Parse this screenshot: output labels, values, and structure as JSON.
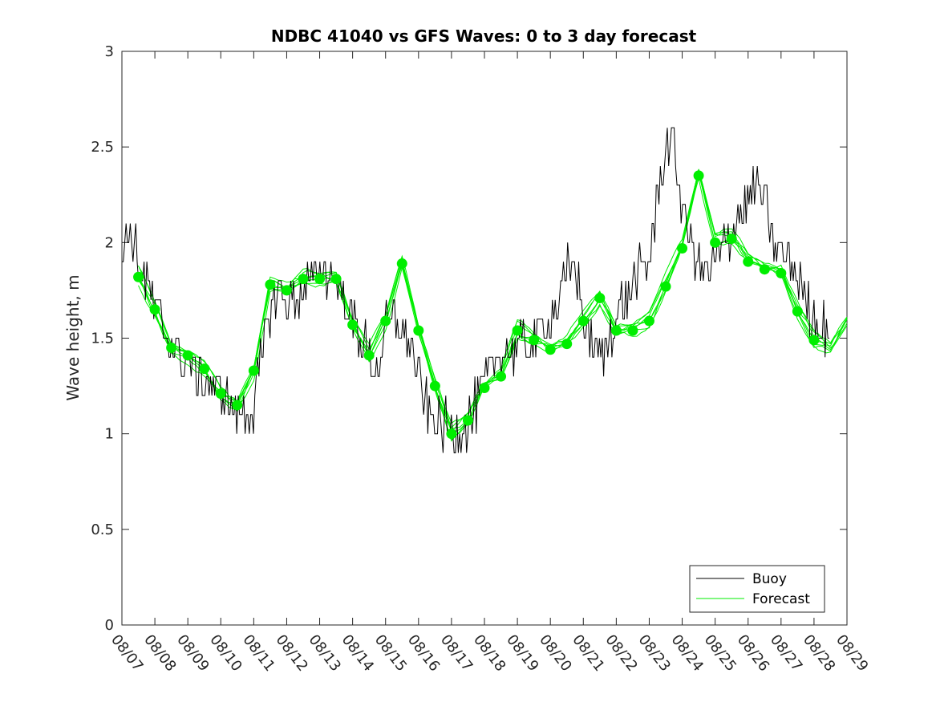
{
  "chart_data": {
    "type": "line",
    "title": "NDBC 41040 vs GFS Waves: 0 to 3 day forecast",
    "xlabel": "",
    "ylabel": "Wave height, m",
    "ylim": [
      0,
      3
    ],
    "xlim": [
      0,
      22
    ],
    "yticks": [
      0,
      0.5,
      1,
      1.5,
      2,
      2.5,
      3
    ],
    "ytick_labels": [
      "0",
      "0.5",
      "1",
      "1.5",
      "2",
      "2.5",
      "3"
    ],
    "xtick_labels": [
      "08/07",
      "08/08",
      "08/09",
      "08/10",
      "08/11",
      "08/12",
      "08/13",
      "08/14",
      "08/15",
      "08/16",
      "08/17",
      "08/18",
      "08/19",
      "08/20",
      "08/21",
      "08/22",
      "08/23",
      "08/24",
      "08/25",
      "08/26",
      "08/27",
      "08/28",
      "08/29"
    ],
    "x_unit": "days since 08/07",
    "legend": {
      "location": "bottom-right",
      "entries": [
        "Buoy",
        "Forecast"
      ]
    },
    "colors": {
      "buoy": "#000000",
      "forecast": "#00ee00",
      "markers": "#00ee00"
    },
    "series": [
      {
        "name": "Buoy",
        "x": [
          0,
          0.15,
          0.25,
          0.4,
          0.5,
          0.6,
          0.75,
          1.0,
          1.25,
          1.5,
          1.75,
          2.0,
          2.25,
          2.5,
          2.75,
          3.0,
          3.25,
          3.5,
          3.7,
          4.0,
          4.25,
          4.5,
          4.75,
          5.0,
          5.25,
          5.5,
          5.75,
          6.0,
          6.25,
          6.5,
          6.75,
          7.0,
          7.25,
          7.5,
          7.75,
          8.0,
          8.25,
          8.5,
          8.75,
          9.0,
          9.25,
          9.5,
          9.75,
          10.0,
          10.25,
          10.5,
          10.75,
          11.0,
          11.25,
          11.5,
          11.75,
          12.0,
          12.25,
          12.5,
          12.75,
          13.0,
          13.25,
          13.5,
          13.75,
          14.0,
          14.25,
          14.5,
          14.75,
          15.0,
          15.25,
          15.5,
          15.75,
          16.0,
          16.25,
          16.5,
          16.75,
          17.0,
          17.25,
          17.5,
          17.75,
          18.0,
          18.25,
          18.5,
          18.75,
          19.0,
          19.25,
          19.5,
          19.75,
          20.0,
          20.25,
          20.5,
          20.75,
          21.0,
          21.25,
          21.5
        ],
        "values": [
          1.85,
          2.1,
          2.0,
          1.95,
          1.9,
          1.85,
          1.8,
          1.65,
          1.55,
          1.45,
          1.4,
          1.35,
          1.3,
          1.28,
          1.25,
          1.2,
          1.15,
          1.12,
          1.1,
          1.15,
          1.4,
          1.65,
          1.75,
          1.7,
          1.72,
          1.75,
          1.8,
          1.85,
          1.82,
          1.8,
          1.7,
          1.6,
          1.5,
          1.4,
          1.3,
          1.55,
          1.6,
          1.55,
          1.45,
          1.3,
          1.15,
          1.08,
          1.05,
          1.0,
          1.02,
          1.05,
          1.15,
          1.25,
          1.35,
          1.42,
          1.45,
          1.45,
          1.45,
          1.48,
          1.55,
          1.6,
          1.7,
          1.85,
          1.9,
          1.6,
          1.5,
          1.4,
          1.5,
          1.6,
          1.7,
          1.8,
          1.85,
          1.9,
          2.2,
          2.5,
          2.5,
          2.2,
          2.0,
          1.9,
          1.85,
          1.9,
          1.95,
          2.05,
          2.15,
          2.2,
          2.3,
          2.2,
          2.0,
          1.95,
          1.9,
          1.85,
          1.7,
          1.6,
          1.55,
          1.55
        ]
      },
      {
        "name": "Forecast",
        "x": [
          0.5,
          1.0,
          1.5,
          2.0,
          2.5,
          3.0,
          3.5,
          4.0,
          4.5,
          5.0,
          5.5,
          6.0,
          6.5,
          7.0,
          7.5,
          8.0,
          8.5,
          9.0,
          9.5,
          10.0,
          10.5,
          11.0,
          11.5,
          12.0,
          12.5,
          13.0,
          13.5,
          14.0,
          14.5,
          15.0,
          15.5,
          16.0,
          16.5,
          17.0,
          17.5,
          18.0,
          18.5,
          19.0,
          19.5,
          20.0,
          20.5,
          21.0,
          21.5,
          22.0
        ],
        "values": [
          1.82,
          1.65,
          1.45,
          1.41,
          1.34,
          1.21,
          1.15,
          1.33,
          1.78,
          1.75,
          1.81,
          1.81,
          1.81,
          1.57,
          1.41,
          1.59,
          1.89,
          1.54,
          1.25,
          1.0,
          1.07,
          1.24,
          1.3,
          1.54,
          1.49,
          1.44,
          1.47,
          1.59,
          1.71,
          1.54,
          1.54,
          1.59,
          1.77,
          1.97,
          2.35,
          2.0,
          2.02,
          1.9,
          1.86,
          1.84,
          1.64,
          1.49,
          1.45,
          1.6
        ]
      }
    ],
    "markers": {
      "name": "Forecast analysis points",
      "x": [
        0.5,
        1.0,
        1.5,
        2.0,
        2.5,
        3.0,
        3.5,
        4.0,
        4.5,
        5.0,
        5.5,
        6.0,
        6.5,
        7.0,
        7.5,
        8.0,
        8.5,
        9.0,
        9.5,
        10.0,
        10.5,
        11.0,
        11.5,
        12.0,
        12.5,
        13.0,
        13.5,
        14.0,
        14.5,
        15.0,
        15.5,
        16.0,
        16.5,
        17.0,
        17.5,
        18.0,
        18.5,
        19.0,
        19.5,
        20.0,
        20.5,
        21.0
      ],
      "values": [
        1.82,
        1.65,
        1.45,
        1.41,
        1.34,
        1.21,
        1.15,
        1.33,
        1.78,
        1.75,
        1.81,
        1.81,
        1.81,
        1.57,
        1.41,
        1.59,
        1.89,
        1.54,
        1.25,
        1.0,
        1.07,
        1.24,
        1.3,
        1.54,
        1.49,
        1.44,
        1.47,
        1.59,
        1.71,
        1.54,
        1.54,
        1.59,
        1.77,
        1.97,
        2.35,
        2.0,
        2.02,
        1.9,
        1.86,
        1.84,
        1.64,
        1.49
      ]
    },
    "grid": false
  }
}
